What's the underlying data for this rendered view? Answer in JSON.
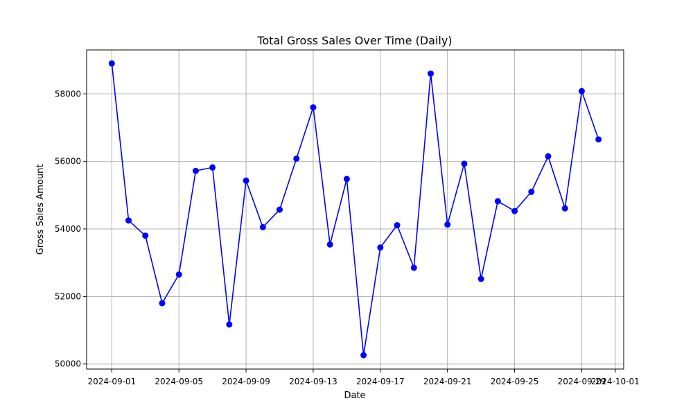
{
  "chart_data": {
    "type": "line",
    "title": "Total Gross Sales Over Time (Daily)",
    "xlabel": "Date",
    "ylabel": "Gross Sales Amount",
    "x": [
      "2024-09-01",
      "2024-09-02",
      "2024-09-03",
      "2024-09-04",
      "2024-09-05",
      "2024-09-06",
      "2024-09-07",
      "2024-09-08",
      "2024-09-09",
      "2024-09-10",
      "2024-09-11",
      "2024-09-12",
      "2024-09-13",
      "2024-09-14",
      "2024-09-15",
      "2024-09-16",
      "2024-09-17",
      "2024-09-18",
      "2024-09-19",
      "2024-09-20",
      "2024-09-21",
      "2024-09-22",
      "2024-09-23",
      "2024-09-24",
      "2024-09-25",
      "2024-09-26",
      "2024-09-27",
      "2024-09-28",
      "2024-09-29",
      "2024-09-30"
    ],
    "series": [
      {
        "color": "#0000ff",
        "marker": "circle",
        "values": [
          58900,
          54250,
          53800,
          51800,
          52650,
          55720,
          55820,
          51170,
          55430,
          54050,
          54570,
          56080,
          57600,
          53540,
          55480,
          50260,
          53450,
          54110,
          52850,
          58600,
          54130,
          55930,
          52520,
          54820,
          54530,
          55100,
          56150,
          54610,
          58080,
          56650
        ]
      }
    ],
    "xlim": [
      "2024-08-30T12:00",
      "2024-10-01T12:00"
    ],
    "ylim": [
      49850,
      59300
    ],
    "x_ticks": [
      "2024-09-01",
      "2024-09-05",
      "2024-09-09",
      "2024-09-13",
      "2024-09-17",
      "2024-09-21",
      "2024-09-25",
      "2024-09-29",
      "2024-10-01"
    ],
    "y_ticks": [
      50000,
      52000,
      54000,
      56000,
      58000
    ],
    "grid": true,
    "grid_color": "#b0b0b0"
  }
}
